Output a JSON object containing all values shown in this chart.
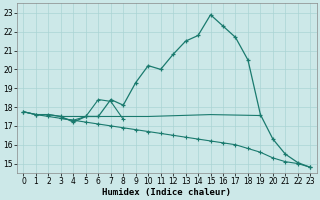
{
  "xlabel": "Humidex (Indice chaleur)",
  "bg_color": "#cce8e8",
  "grid_color": "#aad4d4",
  "line_color": "#1a7a6e",
  "xlim": [
    -0.5,
    23.5
  ],
  "ylim": [
    14.5,
    23.5
  ],
  "yticks": [
    15,
    16,
    17,
    18,
    19,
    20,
    21,
    22,
    23
  ],
  "xticks": [
    0,
    1,
    2,
    3,
    4,
    5,
    6,
    7,
    8,
    9,
    10,
    11,
    12,
    13,
    14,
    15,
    16,
    17,
    18,
    19,
    20,
    21,
    22,
    23
  ],
  "line1_x": [
    0,
    1,
    2,
    3,
    4,
    5,
    6,
    7,
    8,
    9,
    10,
    11,
    12,
    13,
    14,
    15,
    16,
    17,
    18,
    19,
    20,
    21,
    22,
    23
  ],
  "line1_y": [
    17.75,
    17.6,
    17.6,
    17.5,
    17.2,
    17.5,
    17.5,
    18.4,
    18.1,
    19.3,
    20.2,
    20.0,
    20.8,
    21.5,
    21.8,
    22.9,
    22.3,
    21.7,
    20.5,
    17.6,
    16.3,
    15.5,
    15.05,
    14.8
  ],
  "line2_x": [
    0,
    1,
    2,
    3,
    4,
    5,
    6,
    7,
    8,
    9,
    10,
    11,
    12,
    13,
    14,
    15,
    16,
    17,
    18,
    19,
    20,
    21,
    22,
    23
  ],
  "line2_y": [
    17.75,
    17.6,
    17.5,
    17.4,
    17.3,
    17.2,
    17.1,
    17.0,
    16.9,
    16.8,
    16.7,
    16.6,
    16.5,
    16.4,
    16.3,
    16.2,
    16.1,
    16.0,
    15.8,
    15.6,
    15.3,
    15.1,
    15.0,
    14.8
  ],
  "line3_x": [
    0,
    1,
    2,
    3,
    4,
    5,
    6,
    7,
    8,
    9,
    10,
    15,
    19
  ],
  "line3_y": [
    17.75,
    17.6,
    17.6,
    17.5,
    17.5,
    17.5,
    17.5,
    17.5,
    17.5,
    17.5,
    17.5,
    17.6,
    17.55
  ],
  "line4_x": [
    3,
    4,
    5,
    6,
    7,
    8
  ],
  "line4_y": [
    17.4,
    17.3,
    17.5,
    18.4,
    18.3,
    17.35
  ]
}
